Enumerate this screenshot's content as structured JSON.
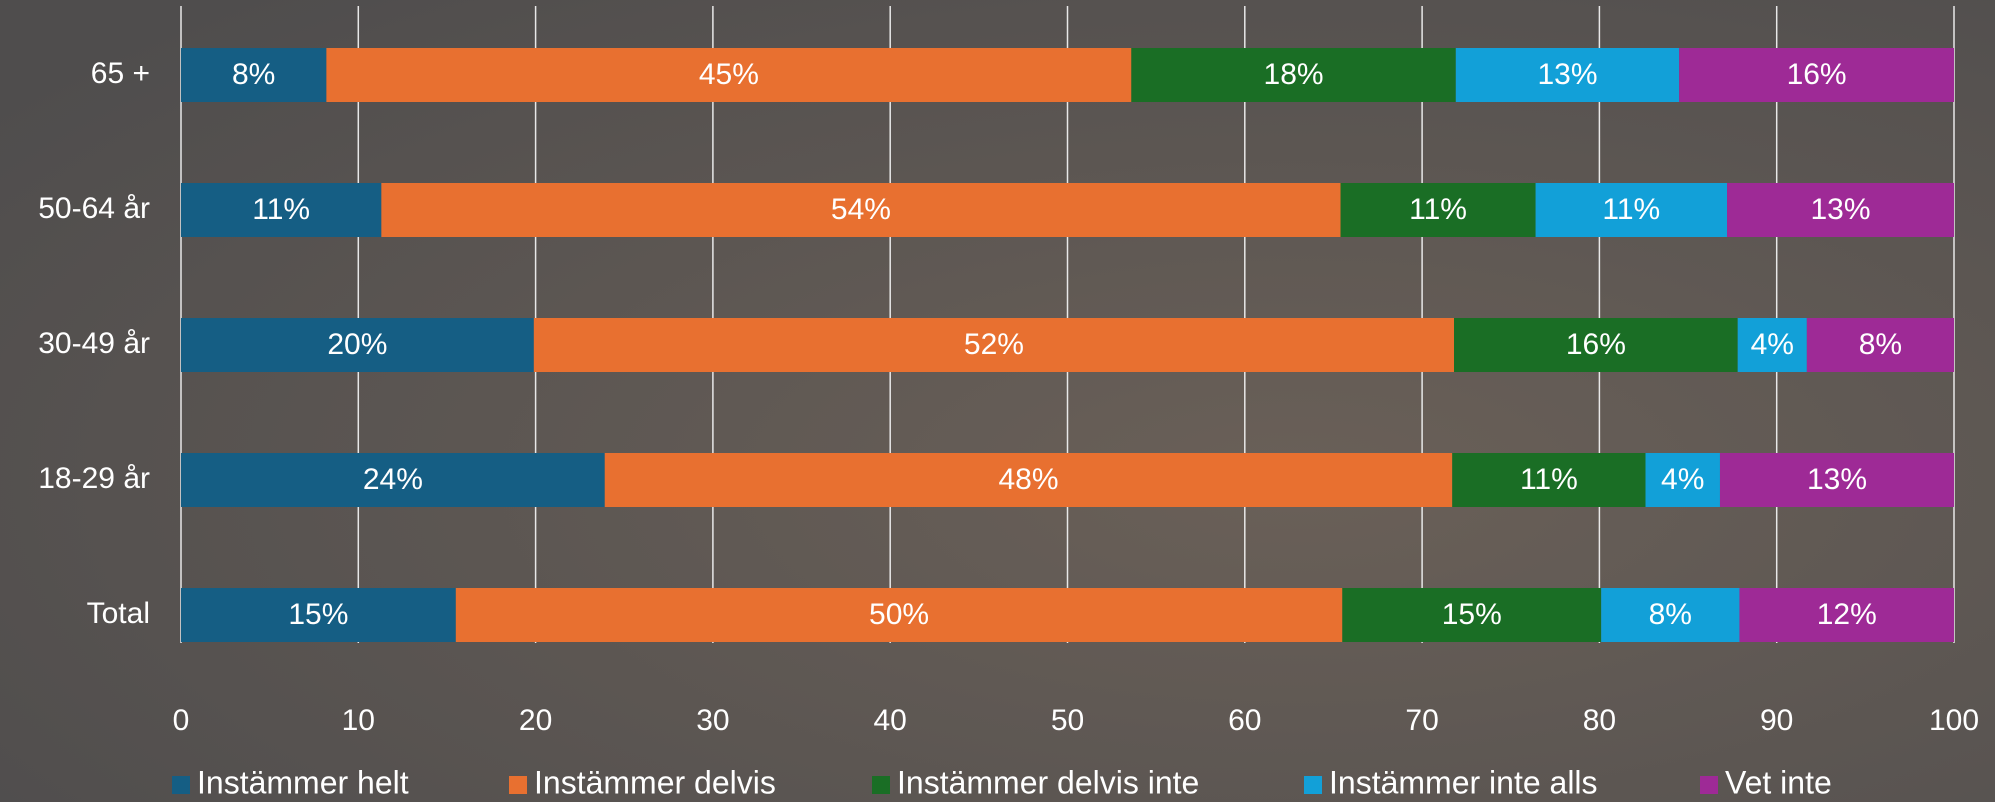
{
  "chart_data": {
    "type": "stacked-bar-horizontal",
    "categories": [
      "65 +",
      "50-64 år",
      "30-49 år",
      "18-29 år",
      "Total"
    ],
    "series": [
      {
        "name": "Instämmer helt",
        "color": "#155e84",
        "values": [
          8.2,
          11.3,
          19.9,
          23.9,
          15.5
        ],
        "value_labels": [
          "8%",
          "11%",
          "20%",
          "24%",
          "15%"
        ]
      },
      {
        "name": "Instämmer delvis",
        "color": "#e87030",
        "values": [
          45.4,
          54.1,
          51.9,
          47.8,
          50.0
        ],
        "value_labels": [
          "45%",
          "54%",
          "52%",
          "48%",
          "50%"
        ]
      },
      {
        "name": "Instämmer delvis inte",
        "color": "#1a6e25",
        "values": [
          18.3,
          11.0,
          16.0,
          10.9,
          14.6
        ],
        "value_labels": [
          "18%",
          "11%",
          "16%",
          "11%",
          "15%"
        ]
      },
      {
        "name": "Instämmer inte alls",
        "color": "#12a0d8",
        "values": [
          12.6,
          10.8,
          3.9,
          4.2,
          7.8
        ],
        "value_labels": [
          "13%",
          "11%",
          "4%",
          "4%",
          "8%"
        ]
      },
      {
        "name": "Vet inte",
        "color": "#9e2a96",
        "values": [
          15.5,
          12.8,
          8.3,
          13.2,
          12.1
        ],
        "value_labels": [
          "16%",
          "13%",
          "8%",
          "13%",
          "12%"
        ]
      }
    ],
    "xlim": [
      0,
      100
    ],
    "xticks": [
      0,
      10,
      20,
      30,
      40,
      50,
      60,
      70,
      80,
      90,
      100
    ],
    "grid": true,
    "legend": "bottom"
  }
}
